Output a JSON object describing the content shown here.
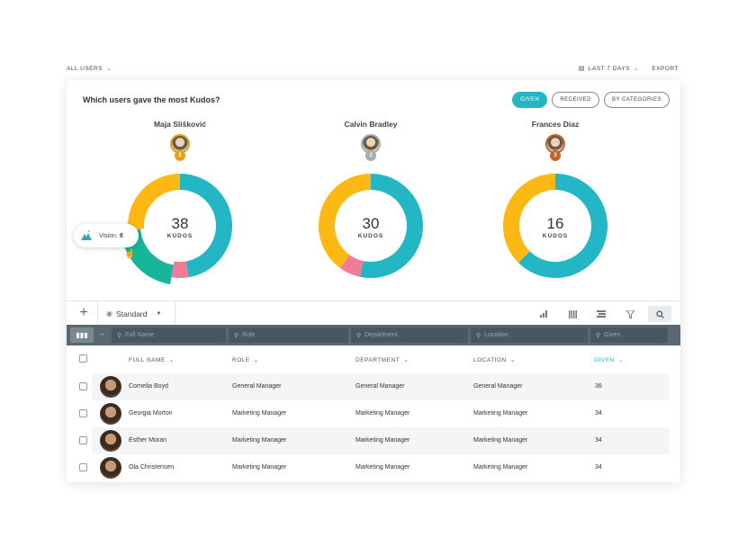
{
  "topbar": {
    "filter_label": "ALL USERS",
    "range_label": "LAST 7 DAYS",
    "export_label": "EXPORT"
  },
  "card": {
    "title": "Which users gave the most Kudos?",
    "toggles": [
      {
        "label": "GIVEN",
        "active": true
      },
      {
        "label": "RECEIVED",
        "active": false
      },
      {
        "label": "BY CATEGORIES",
        "active": false
      }
    ]
  },
  "colors": {
    "teal": "#23b7c6",
    "yellow": "#fdb813",
    "pink": "#f27b9a",
    "green": "#17b59a"
  },
  "chart_data": [
    {
      "type": "pie",
      "name": "Maja Slišković",
      "medal": "gold",
      "total": 38,
      "unit": "KUDOS",
      "slices": [
        {
          "color": "#23b7c6",
          "value": 18
        },
        {
          "color": "#f27b9a",
          "value": 2
        },
        {
          "color": "#17b59a",
          "value": 8,
          "label": "Vision",
          "highlighted": true
        },
        {
          "color": "#fdb813",
          "value": 10
        }
      ]
    },
    {
      "type": "pie",
      "name": "Calvin Bradley",
      "medal": "silver",
      "total": 30,
      "unit": "KUDOS",
      "slices": [
        {
          "color": "#23b7c6",
          "value": 16
        },
        {
          "color": "#f27b9a",
          "value": 2
        },
        {
          "color": "#fdb813",
          "value": 12
        }
      ]
    },
    {
      "type": "pie",
      "name": "Frances Diaz",
      "medal": "bronze",
      "total": 16,
      "unit": "KUDOS",
      "slices": [
        {
          "color": "#23b7c6",
          "value": 10
        },
        {
          "color": "#fdb813",
          "value": 6
        }
      ]
    }
  ],
  "tooltip": {
    "label": "Vision: ",
    "value": "8",
    "icon": "mountain-icon"
  },
  "toolbar": {
    "view_label": "Standard",
    "icons": [
      "bar-chart-icon",
      "columns-icon",
      "group-icon",
      "filter-icon",
      "search-icon"
    ]
  },
  "filters": {
    "full_name": "Full Name",
    "role": "Role",
    "department": "Department",
    "location": "Location",
    "given": "Given"
  },
  "table": {
    "headers": {
      "full_name": "FULL NAME",
      "role": "ROLE",
      "department": "DEPARTMENT",
      "location": "LOCATION",
      "given": "GIVEN"
    },
    "rows": [
      {
        "name": "Cornelia Boyd",
        "role": "General Manager",
        "department": "General Manager",
        "location": "General Manager",
        "given": "36"
      },
      {
        "name": "Georgia Morton",
        "role": "Marketing Manager",
        "department": "Marketing Manager",
        "location": "Marketing Manager",
        "given": "34"
      },
      {
        "name": "Esther Moran",
        "role": "Marketing Manager",
        "department": "Marketing Manager",
        "location": "Marketing Manager",
        "given": "34"
      },
      {
        "name": "Ola Christensen",
        "role": "Marketing Manager",
        "department": "Marketing Manager",
        "location": "Marketing Manager",
        "given": "34"
      }
    ]
  }
}
